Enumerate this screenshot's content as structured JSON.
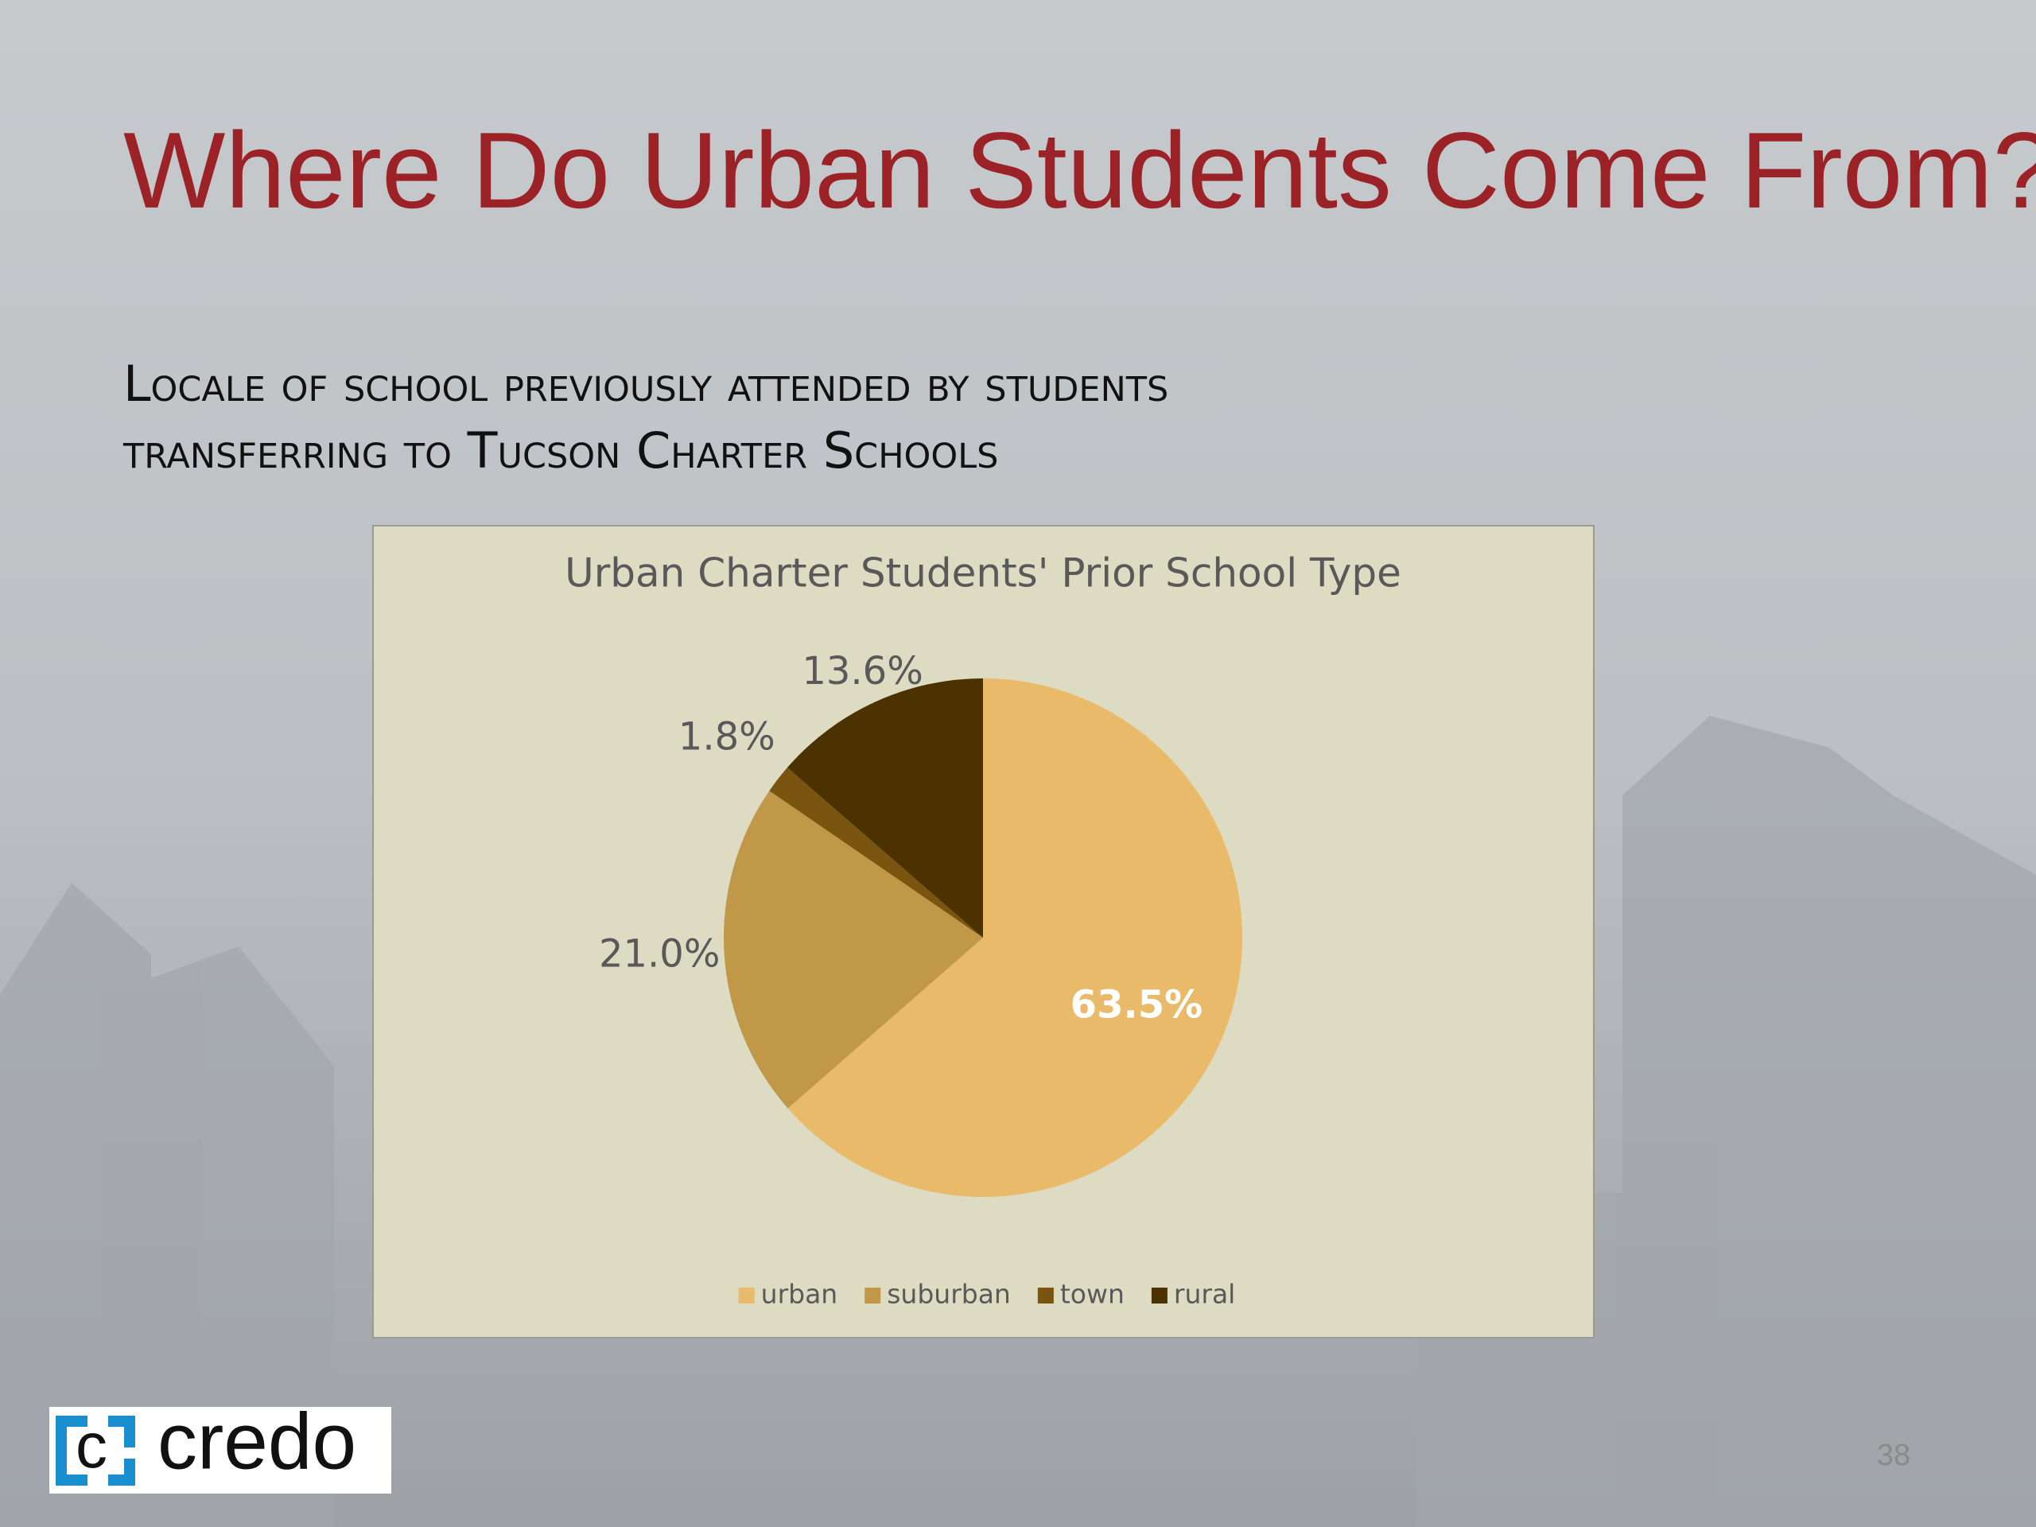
{
  "slide": {
    "title": "Where Do Urban Students Come From?",
    "subtitle_lines": [
      "Locale of school previously attended by students",
      "transferring to Tucson Charter Schools"
    ],
    "logo_text": "credo",
    "page_number": "38"
  },
  "chart_data": {
    "type": "pie",
    "title": "Urban Charter Students' Prior School Type",
    "categories": [
      "urban",
      "suburban",
      "town",
      "rural"
    ],
    "values": [
      63.5,
      21.0,
      1.8,
      13.6
    ],
    "value_labels": [
      "63.5%",
      "21.0%",
      "1.8%",
      "13.6%"
    ],
    "colors": [
      "#e8ba6a",
      "#c09848",
      "#7a5510",
      "#4b3200"
    ],
    "legend": "bottom"
  }
}
